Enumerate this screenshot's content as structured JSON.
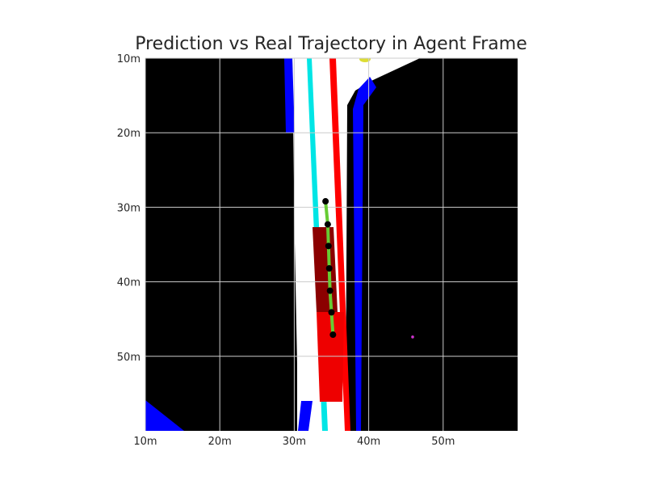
{
  "chart_data": {
    "type": "scatter",
    "title": "Prediction vs Real Trajectory in Agent Frame",
    "xlabel": "",
    "ylabel": "",
    "xlim": [
      10,
      60
    ],
    "ylim": [
      60,
      10
    ],
    "x_ticks": [
      "10m",
      "20m",
      "30m",
      "40m",
      "50m"
    ],
    "y_ticks": [
      "10m",
      "20m",
      "30m",
      "40m",
      "50m"
    ],
    "x_tick_values": [
      10,
      20,
      30,
      40,
      50
    ],
    "y_tick_values": [
      10,
      20,
      30,
      40,
      50
    ],
    "grid": true,
    "background": "#000000",
    "series": [
      {
        "role": "predicted_trajectory",
        "color": "#66cc33",
        "x": [
          34.2,
          34.5,
          34.6,
          34.7,
          34.8,
          35.0,
          35.2
        ],
        "y": [
          29.2,
          32.3,
          35.2,
          38.2,
          41.2,
          44.1,
          47.1
        ]
      },
      {
        "role": "real_trajectory",
        "color": "#000000",
        "x": [
          34.2,
          34.5,
          34.6,
          34.7,
          34.8,
          35.0,
          35.2
        ],
        "y": [
          29.2,
          32.3,
          35.2,
          38.2,
          41.2,
          44.1,
          47.1
        ]
      },
      {
        "role": "other_agent",
        "color": "#cc33cc",
        "x": [
          45.9
        ],
        "y": [
          47.4
        ]
      }
    ]
  }
}
